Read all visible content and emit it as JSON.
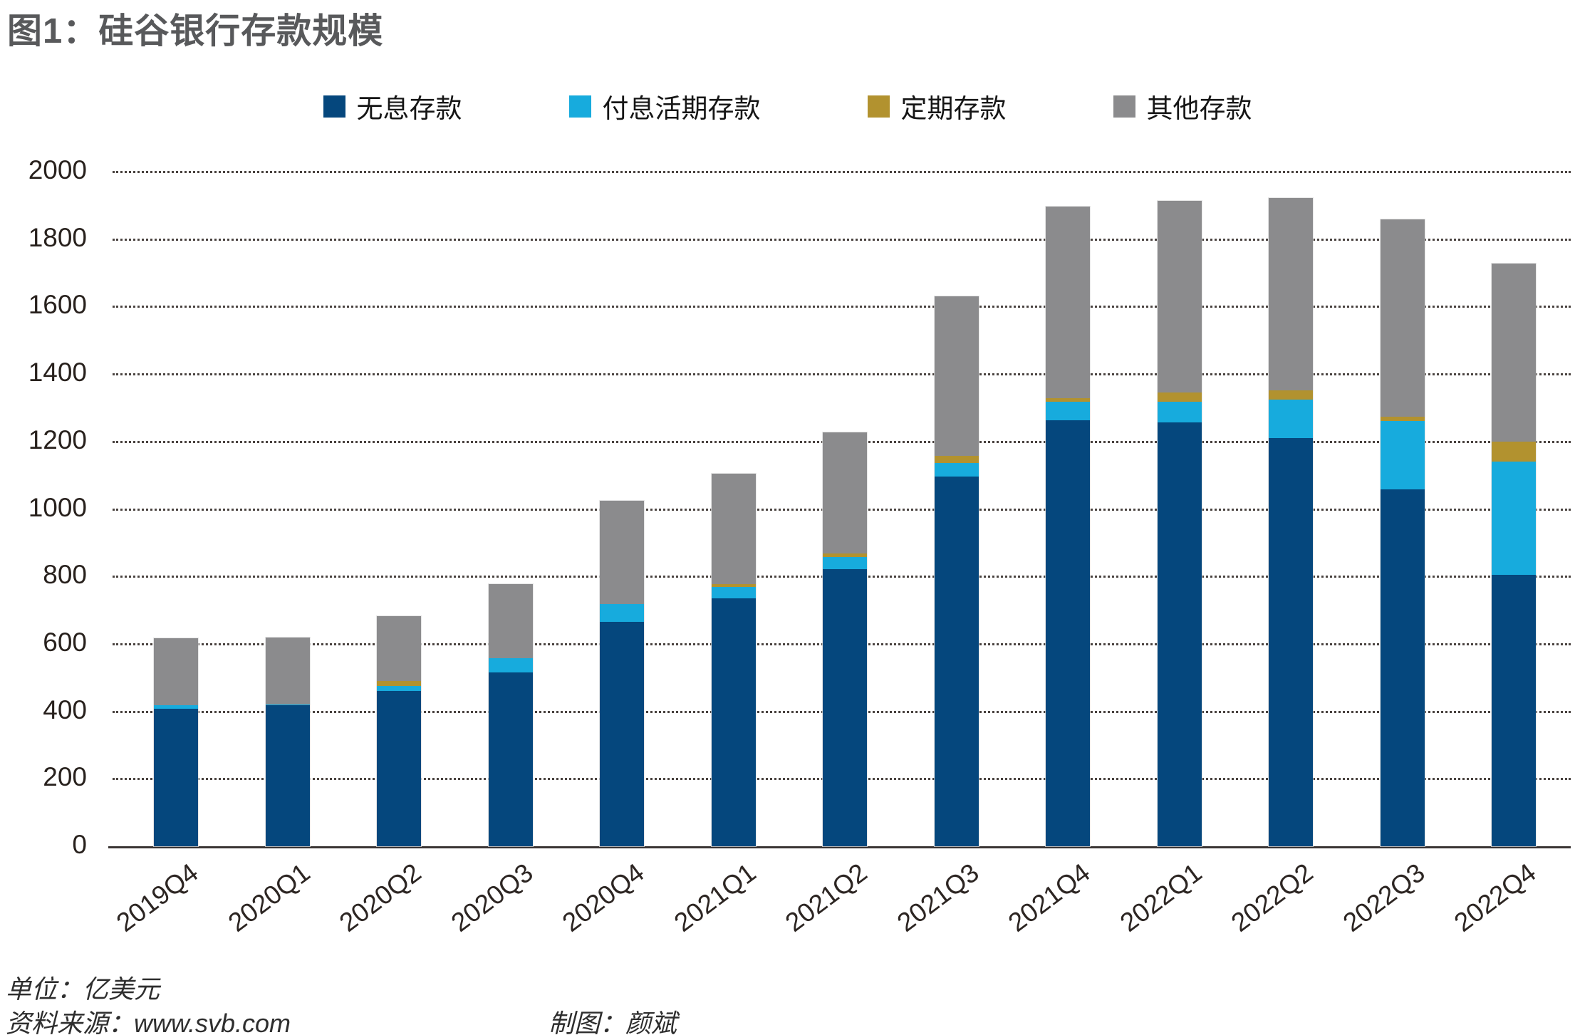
{
  "title": "图1：硅谷银行存款规模",
  "footer": {
    "unit_label": "单位：亿美元",
    "source_label": "资料来源：www.svb.com",
    "credit_label": "制图：颜斌"
  },
  "colors": {
    "noninterest": "#05477d",
    "interest_demand": "#17abdd",
    "time": "#b2922f",
    "other": "#8b8b8d",
    "title_text": "#58595b",
    "axis_line": "#3a3534"
  },
  "chart_data": {
    "type": "bar",
    "stacked": true,
    "title": "图1：硅谷银行存款规模",
    "unit": "亿美元",
    "legend_position": "top-center",
    "grid": "horizontal-dotted",
    "ylim": [
      0,
      2000
    ],
    "ytick_interval": 200,
    "yticks": [
      0,
      200,
      400,
      600,
      800,
      1000,
      1200,
      1400,
      1600,
      1800,
      2000
    ],
    "categories": [
      "2019Q4",
      "2020Q1",
      "2020Q2",
      "2020Q3",
      "2020Q4",
      "2021Q1",
      "2021Q2",
      "2021Q3",
      "2021Q4",
      "2022Q1",
      "2022Q2",
      "2022Q3",
      "2022Q4"
    ],
    "series": [
      {
        "name": "无息存款",
        "color": "#05477d",
        "values": [
          408,
          418,
          461,
          516,
          666,
          736,
          822,
          1097,
          1262,
          1256,
          1211,
          1059,
          805
        ]
      },
      {
        "name": "付息活期存款",
        "color": "#17abdd",
        "values": [
          10,
          2,
          15,
          42,
          53,
          34,
          36,
          41,
          55,
          61,
          115,
          203,
          336
        ]
      },
      {
        "name": "定期存款",
        "color": "#b2922f",
        "values": [
          0,
          0,
          15,
          0,
          0,
          8,
          11,
          21,
          11,
          28,
          27,
          13,
          60
        ]
      },
      {
        "name": "其他存款",
        "color": "#8b8b8d",
        "values": [
          199,
          198,
          192,
          220,
          306,
          328,
          359,
          473,
          569,
          568,
          571,
          586,
          528
        ]
      }
    ],
    "totals": [
      617,
      618,
      683,
      778,
      1025,
      1106,
      1228,
      1632,
      1897,
      1913,
      1924,
      1861,
      1729
    ]
  }
}
